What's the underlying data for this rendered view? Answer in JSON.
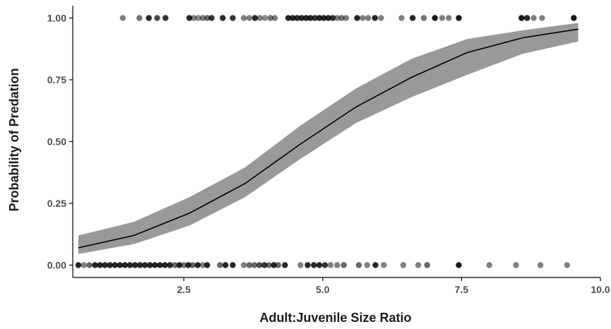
{
  "chart_data": {
    "type": "scatter",
    "title": "",
    "xlabel": "Adult:Juvenile Size Ratio",
    "ylabel": "Probability of Predation",
    "xlim": [
      0.5,
      10.0
    ],
    "ylim": [
      -0.05,
      1.05
    ],
    "x_ticks": [
      2.5,
      5.0,
      7.5,
      10.0
    ],
    "x_tick_labels": [
      "2.5",
      "5.0",
      "7.5",
      "10.0"
    ],
    "y_ticks": [
      0.0,
      0.25,
      0.5,
      0.75,
      1.0
    ],
    "y_tick_labels": [
      "0.00",
      "0.25",
      "0.50",
      "0.75",
      "1.00"
    ],
    "grid": false,
    "legend": "none",
    "colors": {
      "ribbon": "#999999",
      "line": "#000000",
      "axis": "#000000",
      "points": "#000000"
    },
    "fit": {
      "x": [
        0.6,
        1.6,
        2.6,
        3.6,
        4.6,
        5.6,
        6.6,
        7.6,
        8.6,
        9.6
      ],
      "y": [
        0.07,
        0.12,
        0.21,
        0.33,
        0.49,
        0.64,
        0.76,
        0.86,
        0.92,
        0.955
      ],
      "lower": [
        0.045,
        0.085,
        0.16,
        0.275,
        0.43,
        0.575,
        0.68,
        0.77,
        0.855,
        0.905
      ],
      "upper": [
        0.12,
        0.175,
        0.275,
        0.395,
        0.565,
        0.715,
        0.835,
        0.915,
        0.95,
        0.98
      ]
    },
    "series": [
      {
        "values": [
          {
            "x": 1.4,
            "y": 1,
            "a": 0.5
          },
          {
            "x": 1.7,
            "y": 1,
            "a": 0.55
          },
          {
            "x": 1.87,
            "y": 1,
            "a": 0.85
          },
          {
            "x": 2.02,
            "y": 1,
            "a": 0.7
          },
          {
            "x": 2.17,
            "y": 1,
            "a": 0.8
          },
          {
            "x": 2.6,
            "y": 1,
            "a": 0.85
          },
          {
            "x": 2.68,
            "y": 1,
            "a": 0.5
          },
          {
            "x": 2.76,
            "y": 1,
            "a": 0.45
          },
          {
            "x": 2.84,
            "y": 1,
            "a": 0.5
          },
          {
            "x": 2.92,
            "y": 1,
            "a": 0.6
          },
          {
            "x": 3.0,
            "y": 1,
            "a": 0.8
          },
          {
            "x": 3.2,
            "y": 1,
            "a": 0.85
          },
          {
            "x": 3.38,
            "y": 1,
            "a": 0.8
          },
          {
            "x": 3.58,
            "y": 1,
            "a": 0.5
          },
          {
            "x": 3.68,
            "y": 1,
            "a": 0.5
          },
          {
            "x": 3.78,
            "y": 1,
            "a": 0.85
          },
          {
            "x": 3.87,
            "y": 1,
            "a": 0.5
          },
          {
            "x": 3.96,
            "y": 1,
            "a": 0.45
          },
          {
            "x": 4.06,
            "y": 1,
            "a": 0.55
          },
          {
            "x": 4.14,
            "y": 1,
            "a": 0.5
          },
          {
            "x": 4.38,
            "y": 1,
            "a": 0.85
          },
          {
            "x": 4.46,
            "y": 1,
            "a": 0.85
          },
          {
            "x": 4.54,
            "y": 1,
            "a": 0.85
          },
          {
            "x": 4.62,
            "y": 1,
            "a": 0.85
          },
          {
            "x": 4.7,
            "y": 1,
            "a": 0.85
          },
          {
            "x": 4.78,
            "y": 1,
            "a": 0.85
          },
          {
            "x": 4.86,
            "y": 1,
            "a": 0.8
          },
          {
            "x": 4.94,
            "y": 1,
            "a": 0.85
          },
          {
            "x": 5.02,
            "y": 1,
            "a": 0.85
          },
          {
            "x": 5.1,
            "y": 1,
            "a": 0.85
          },
          {
            "x": 5.18,
            "y": 1,
            "a": 0.8
          },
          {
            "x": 5.26,
            "y": 1,
            "a": 0.5
          },
          {
            "x": 5.34,
            "y": 1,
            "a": 0.55
          },
          {
            "x": 5.42,
            "y": 1,
            "a": 0.5
          },
          {
            "x": 5.62,
            "y": 1,
            "a": 0.85
          },
          {
            "x": 5.72,
            "y": 1,
            "a": 0.5
          },
          {
            "x": 5.82,
            "y": 1,
            "a": 0.5
          },
          {
            "x": 5.94,
            "y": 1,
            "a": 0.85
          },
          {
            "x": 6.05,
            "y": 1,
            "a": 0.5
          },
          {
            "x": 6.42,
            "y": 1,
            "a": 0.5
          },
          {
            "x": 6.62,
            "y": 1,
            "a": 0.85
          },
          {
            "x": 6.82,
            "y": 1,
            "a": 0.55
          },
          {
            "x": 7.02,
            "y": 1,
            "a": 0.9
          },
          {
            "x": 7.15,
            "y": 1,
            "a": 0.5
          },
          {
            "x": 7.27,
            "y": 1,
            "a": 0.5
          },
          {
            "x": 7.45,
            "y": 1,
            "a": 0.9
          },
          {
            "x": 8.58,
            "y": 1,
            "a": 0.9
          },
          {
            "x": 8.68,
            "y": 1,
            "a": 0.85
          },
          {
            "x": 8.8,
            "y": 1,
            "a": 0.5
          },
          {
            "x": 8.95,
            "y": 1,
            "a": 0.5
          },
          {
            "x": 9.52,
            "y": 1,
            "a": 0.9
          },
          {
            "x": 0.6,
            "y": 0,
            "a": 0.85
          },
          {
            "x": 0.7,
            "y": 0,
            "a": 0.5
          },
          {
            "x": 0.8,
            "y": 0,
            "a": 0.6
          },
          {
            "x": 0.9,
            "y": 0,
            "a": 0.85
          },
          {
            "x": 0.99,
            "y": 0,
            "a": 0.85
          },
          {
            "x": 1.08,
            "y": 0,
            "a": 0.85
          },
          {
            "x": 1.17,
            "y": 0,
            "a": 0.85
          },
          {
            "x": 1.26,
            "y": 0,
            "a": 0.85
          },
          {
            "x": 1.35,
            "y": 0,
            "a": 0.85
          },
          {
            "x": 1.44,
            "y": 0,
            "a": 0.85
          },
          {
            "x": 1.53,
            "y": 0,
            "a": 0.85
          },
          {
            "x": 1.62,
            "y": 0,
            "a": 0.85
          },
          {
            "x": 1.71,
            "y": 0,
            "a": 0.85
          },
          {
            "x": 1.8,
            "y": 0,
            "a": 0.85
          },
          {
            "x": 1.89,
            "y": 0,
            "a": 0.85
          },
          {
            "x": 1.98,
            "y": 0,
            "a": 0.85
          },
          {
            "x": 2.07,
            "y": 0,
            "a": 0.85
          },
          {
            "x": 2.16,
            "y": 0,
            "a": 0.85
          },
          {
            "x": 2.25,
            "y": 0,
            "a": 0.85
          },
          {
            "x": 2.34,
            "y": 0,
            "a": 0.6
          },
          {
            "x": 2.42,
            "y": 0,
            "a": 0.85
          },
          {
            "x": 2.5,
            "y": 0,
            "a": 0.55
          },
          {
            "x": 2.58,
            "y": 0,
            "a": 0.85
          },
          {
            "x": 2.66,
            "y": 0,
            "a": 0.6
          },
          {
            "x": 2.75,
            "y": 0,
            "a": 0.85
          },
          {
            "x": 2.84,
            "y": 0,
            "a": 0.5
          },
          {
            "x": 2.92,
            "y": 0,
            "a": 0.85
          },
          {
            "x": 3.15,
            "y": 0,
            "a": 0.6
          },
          {
            "x": 3.25,
            "y": 0,
            "a": 0.85
          },
          {
            "x": 3.38,
            "y": 0,
            "a": 0.85
          },
          {
            "x": 3.58,
            "y": 0,
            "a": 0.5
          },
          {
            "x": 3.68,
            "y": 0,
            "a": 0.6
          },
          {
            "x": 3.77,
            "y": 0,
            "a": 0.6
          },
          {
            "x": 3.86,
            "y": 0,
            "a": 0.7
          },
          {
            "x": 3.95,
            "y": 0,
            "a": 0.8
          },
          {
            "x": 4.03,
            "y": 0,
            "a": 0.6
          },
          {
            "x": 4.12,
            "y": 0,
            "a": 0.85
          },
          {
            "x": 4.2,
            "y": 0,
            "a": 0.6
          },
          {
            "x": 4.32,
            "y": 0,
            "a": 0.85
          },
          {
            "x": 4.6,
            "y": 0,
            "a": 0.5
          },
          {
            "x": 4.73,
            "y": 0,
            "a": 0.85
          },
          {
            "x": 4.84,
            "y": 0,
            "a": 0.85
          },
          {
            "x": 4.94,
            "y": 0,
            "a": 0.85
          },
          {
            "x": 5.04,
            "y": 0,
            "a": 0.8
          },
          {
            "x": 5.14,
            "y": 0,
            "a": 0.5
          },
          {
            "x": 5.26,
            "y": 0,
            "a": 0.5
          },
          {
            "x": 5.38,
            "y": 0,
            "a": 0.6
          },
          {
            "x": 5.65,
            "y": 0,
            "a": 0.6
          },
          {
            "x": 5.8,
            "y": 0,
            "a": 0.5
          },
          {
            "x": 5.95,
            "y": 0,
            "a": 0.85
          },
          {
            "x": 6.1,
            "y": 0,
            "a": 0.5
          },
          {
            "x": 6.45,
            "y": 0,
            "a": 0.5
          },
          {
            "x": 6.72,
            "y": 0,
            "a": 0.5
          },
          {
            "x": 6.88,
            "y": 0,
            "a": 0.6
          },
          {
            "x": 7.45,
            "y": 0,
            "a": 0.9
          },
          {
            "x": 8.0,
            "y": 0,
            "a": 0.5
          },
          {
            "x": 8.48,
            "y": 0,
            "a": 0.5
          },
          {
            "x": 8.92,
            "y": 0,
            "a": 0.5
          },
          {
            "x": 9.4,
            "y": 0,
            "a": 0.5
          }
        ]
      }
    ]
  }
}
